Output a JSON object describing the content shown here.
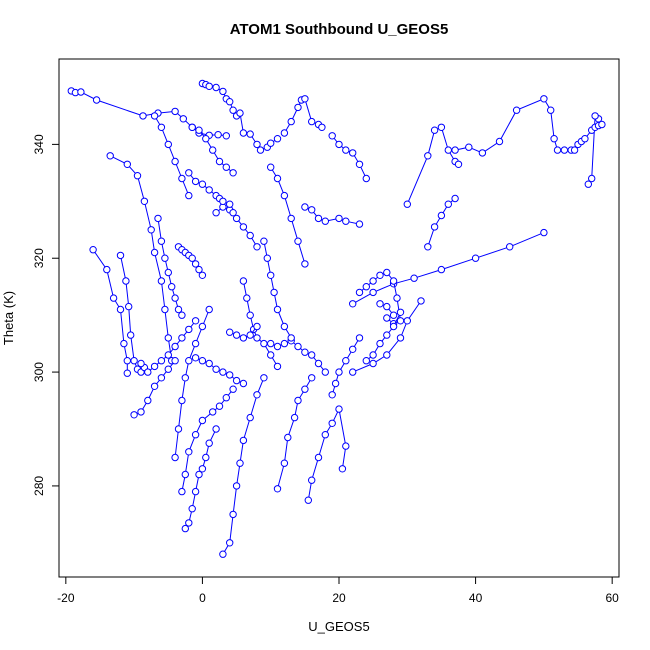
{
  "chart_data": {
    "type": "scatter",
    "title": "ATOM1 Southbound U_GEOS5",
    "xlabel": "U_GEOS5",
    "ylabel": "Theta (K)",
    "xlim": [
      -21,
      61
    ],
    "ylim": [
      264,
      355
    ],
    "x_ticks": [
      -20,
      0,
      20,
      40,
      60
    ],
    "y_ticks": [
      280,
      300,
      320,
      340
    ],
    "grid": false,
    "marker": "open-circle",
    "connected": true,
    "color": "#0000ff",
    "series": [
      {
        "x": [
          -19.2,
          -18.6,
          -17.8,
          -15.5,
          -8.7,
          -6.5,
          -4.0,
          -2.8,
          -1.5,
          -0.5,
          1.0,
          2.3,
          3.5
        ],
        "y": [
          349.4,
          349.1,
          349.2,
          347.8,
          345.0,
          345.5,
          345.8,
          344.5,
          343.0,
          342.0,
          341.6,
          341.7,
          341.5
        ]
      },
      {
        "x": [
          -13.5,
          -11.0,
          -9.5,
          -8.5,
          -7.5,
          -7.0,
          -6.0,
          -5.5,
          -5.0,
          -4.5
        ],
        "y": [
          338.0,
          336.5,
          334.5,
          330.0,
          325.0,
          321.0,
          316.0,
          311.0,
          306.0,
          302.0
        ]
      },
      {
        "x": [
          -12.0,
          -11.2,
          -10.8,
          -10.5,
          -10.0,
          -9.5,
          -9.0,
          -8.5,
          -9.0
        ],
        "y": [
          320.5,
          316.0,
          311.5,
          306.5,
          302.0,
          300.5,
          300.0,
          300.8,
          301.5
        ]
      },
      {
        "x": [
          -16.0,
          -14.0,
          -13.0,
          -12.0,
          -11.5,
          -11.0,
          -11.0
        ],
        "y": [
          321.5,
          318.0,
          313.0,
          311.0,
          305.0,
          302.0,
          299.8
        ]
      },
      {
        "x": [
          0.0,
          0.5,
          1.0,
          2.0,
          3.0,
          3.5,
          4.0,
          4.5,
          5.0
        ],
        "y": [
          350.7,
          350.5,
          350.2,
          350.0,
          349.3,
          348.0,
          347.5,
          346.0,
          345.0
        ]
      },
      {
        "x": [
          5.5,
          6.0,
          7.0,
          8.0,
          8.5,
          9.5,
          10.0,
          11.0
        ],
        "y": [
          345.5,
          342.0,
          341.8,
          340.0,
          339.0,
          339.5,
          340.2,
          341.0
        ]
      },
      {
        "x": [
          12.0,
          13.0,
          14.0,
          14.5,
          15.0,
          16.0,
          17.0,
          17.5
        ],
        "y": [
          342.0,
          344.0,
          346.5,
          347.8,
          348.0,
          344.0,
          343.5,
          343.0
        ]
      },
      {
        "x": [
          30.0,
          33.0,
          34.0,
          35.0,
          36.0,
          37.0,
          37.5
        ],
        "y": [
          329.5,
          338.0,
          342.5,
          343.0,
          339.0,
          337.0,
          336.5
        ]
      },
      {
        "x": [
          33.0,
          34.0,
          35.0,
          36.0,
          37.0
        ],
        "y": [
          322.0,
          325.5,
          327.5,
          329.5,
          330.5
        ]
      },
      {
        "x": [
          37.0,
          39.0,
          41.0,
          43.5,
          46.0,
          50.0,
          51.0,
          51.5,
          52.0,
          53.0,
          54.0
        ],
        "y": [
          339.0,
          339.5,
          338.5,
          340.5,
          346.0,
          348.0,
          346.0,
          341.0,
          339.0,
          339.0,
          339.0
        ]
      },
      {
        "x": [
          54.5,
          55.0,
          55.5,
          56.0,
          57.0,
          57.5,
          58.0,
          58.5,
          58.0,
          57.5,
          57.0,
          56.5
        ],
        "y": [
          339.0,
          340.0,
          340.5,
          341.0,
          342.5,
          343.0,
          343.3,
          343.5,
          344.5,
          345.0,
          334.0,
          333.0
        ]
      },
      {
        "x": [
          50.0,
          45.0,
          40.0,
          35.0,
          31.0,
          28.0,
          25.0,
          22.0
        ],
        "y": [
          324.5,
          322.0,
          320.0,
          318.0,
          316.5,
          315.5,
          314.0,
          312.0
        ]
      },
      {
        "x": [
          23.0,
          24.0,
          25.0,
          26.0,
          27.0,
          28.0,
          28.5,
          29.0,
          28.0,
          27.0
        ],
        "y": [
          314.0,
          315.0,
          316.0,
          317.0,
          317.5,
          316.0,
          313.0,
          309.0,
          308.5,
          309.5
        ]
      },
      {
        "x": [
          26.0,
          27.0,
          28.0,
          29.0,
          28.0,
          27.0,
          26.0,
          25.0,
          24.0
        ],
        "y": [
          312.0,
          311.5,
          310.0,
          310.5,
          308.0,
          306.5,
          305.0,
          303.0,
          302.0
        ]
      },
      {
        "x": [
          15.0,
          16.0,
          17.0,
          18.0,
          20.0,
          21.0,
          23.0
        ],
        "y": [
          329.0,
          328.5,
          327.0,
          326.5,
          327.0,
          326.5,
          326.0
        ]
      },
      {
        "x": [
          19.0,
          20.0,
          21.0,
          22.0,
          23.0,
          24.0
        ],
        "y": [
          341.5,
          340.0,
          339.0,
          338.5,
          336.5,
          334.0
        ]
      },
      {
        "x": [
          22.0,
          25.0,
          27.0,
          29.0,
          30.0,
          32.0
        ],
        "y": [
          300.0,
          301.5,
          303.0,
          306.0,
          309.0,
          312.5
        ]
      },
      {
        "x": [
          10.0,
          11.0,
          12.0,
          13.0,
          14.0,
          15.0,
          16.0,
          17.0,
          18.0
        ],
        "y": [
          305.0,
          304.5,
          305.0,
          305.5,
          304.5,
          303.5,
          303.0,
          301.5,
          300.0
        ]
      },
      {
        "x": [
          15.5,
          16.0,
          17.0,
          18.0,
          19.0,
          20.0,
          21.0,
          20.5
        ],
        "y": [
          277.5,
          281.0,
          285.0,
          289.0,
          291.0,
          293.5,
          287.0,
          283.0
        ]
      },
      {
        "x": [
          11.0,
          12.0,
          12.5,
          13.5,
          14.0,
          15.0,
          16.0
        ],
        "y": [
          279.5,
          284.0,
          288.5,
          292.0,
          295.0,
          297.0,
          299.0
        ]
      },
      {
        "x": [
          3.0,
          4.0,
          4.5,
          5.0,
          5.5,
          6.0,
          7.0,
          8.0,
          9.0
        ],
        "y": [
          268.0,
          270.0,
          275.0,
          280.0,
          284.0,
          288.0,
          292.0,
          296.0,
          299.0
        ]
      },
      {
        "x": [
          -2.5,
          -2.0,
          -1.5,
          -1.0,
          -0.5,
          0.0,
          0.5,
          1.0,
          2.0
        ],
        "y": [
          272.5,
          273.5,
          276.0,
          279.0,
          282.0,
          283.0,
          285.0,
          287.5,
          290.0
        ]
      },
      {
        "x": [
          -3.0,
          -2.5,
          -2.0,
          -1.0,
          0.0,
          1.5,
          2.5,
          3.5,
          4.5
        ],
        "y": [
          279.0,
          282.0,
          286.0,
          289.0,
          291.5,
          293.0,
          294.0,
          295.5,
          297.0
        ]
      },
      {
        "x": [
          -4.0,
          -3.5,
          -3.0,
          -2.5,
          -2.0,
          -1.0,
          0.0,
          1.0
        ],
        "y": [
          285.0,
          290.0,
          295.0,
          299.0,
          302.0,
          305.0,
          308.0,
          311.0
        ]
      },
      {
        "x": [
          -6.5,
          -6.0,
          -5.5,
          -5.0,
          -4.5,
          -4.0,
          -3.5,
          -3.0
        ],
        "y": [
          327.0,
          323.0,
          320.0,
          317.5,
          315.0,
          313.0,
          311.0,
          310.0
        ]
      },
      {
        "x": [
          -3.5,
          -3.0,
          -2.5,
          -2.0,
          -1.5,
          -1.0,
          -0.5,
          0.0
        ],
        "y": [
          322.0,
          321.5,
          321.0,
          320.5,
          320.0,
          319.0,
          318.0,
          317.0
        ]
      },
      {
        "x": [
          -8.0,
          -7.0,
          -6.0,
          -5.0,
          -4.0,
          -3.0,
          -2.0,
          -1.0
        ],
        "y": [
          300.0,
          301.0,
          302.0,
          303.0,
          304.5,
          306.0,
          307.5,
          309.0
        ]
      },
      {
        "x": [
          -1.0,
          0.0,
          1.0,
          2.0,
          3.0,
          4.0,
          5.0,
          6.0
        ],
        "y": [
          302.5,
          302.0,
          301.5,
          300.5,
          300.0,
          299.5,
          298.5,
          298.0
        ]
      },
      {
        "x": [
          2.0,
          3.0,
          4.0,
          4.5,
          5.0,
          6.0,
          7.0,
          8.0
        ],
        "y": [
          328.0,
          329.0,
          328.5,
          328.0,
          327.0,
          325.5,
          324.0,
          322.0
        ]
      },
      {
        "x": [
          -2.0,
          -1.0,
          0.0,
          1.0,
          2.0,
          2.5,
          3.0,
          4.0
        ],
        "y": [
          335.0,
          333.5,
          333.0,
          332.0,
          331.0,
          330.5,
          330.0,
          329.5
        ]
      },
      {
        "x": [
          6.0,
          6.5,
          7.0,
          7.5,
          8.0,
          9.0,
          10.0,
          11.0
        ],
        "y": [
          316.0,
          313.0,
          310.0,
          307.5,
          306.0,
          305.0,
          303.0,
          301.0
        ]
      },
      {
        "x": [
          9.0,
          9.5,
          10.0,
          10.5,
          11.0,
          12.0,
          13.0
        ],
        "y": [
          323.0,
          320.0,
          317.0,
          314.0,
          311.0,
          308.0,
          306.0
        ]
      },
      {
        "x": [
          10.0,
          11.0,
          12.0,
          13.0,
          14.0,
          15.0
        ],
        "y": [
          336.0,
          334.0,
          331.0,
          327.0,
          323.0,
          319.0
        ]
      },
      {
        "x": [
          -10.0,
          -9.0,
          -8.0,
          -7.0,
          -6.0,
          -5.0,
          -4.0
        ],
        "y": [
          292.5,
          293.0,
          295.0,
          297.5,
          299.0,
          300.5,
          302.0
        ]
      },
      {
        "x": [
          -1.5,
          -0.5,
          0.5,
          1.5,
          2.5,
          3.5,
          4.5
        ],
        "y": [
          343.0,
          342.5,
          341.0,
          339.0,
          337.0,
          336.0,
          335.0
        ]
      },
      {
        "x": [
          -7.0,
          -6.0,
          -5.0,
          -4.0,
          -3.0,
          -2.0
        ],
        "y": [
          345.0,
          343.0,
          340.0,
          337.0,
          334.0,
          331.0
        ]
      },
      {
        "x": [
          4.0,
          5.0,
          6.0,
          7.0,
          8.0
        ],
        "y": [
          307.0,
          306.5,
          306.0,
          306.5,
          308.0
        ]
      },
      {
        "x": [
          19.0,
          19.5,
          20.0,
          21.0,
          22.0,
          23.0
        ],
        "y": [
          296.0,
          298.0,
          300.0,
          302.0,
          304.0,
          306.0
        ]
      }
    ]
  }
}
